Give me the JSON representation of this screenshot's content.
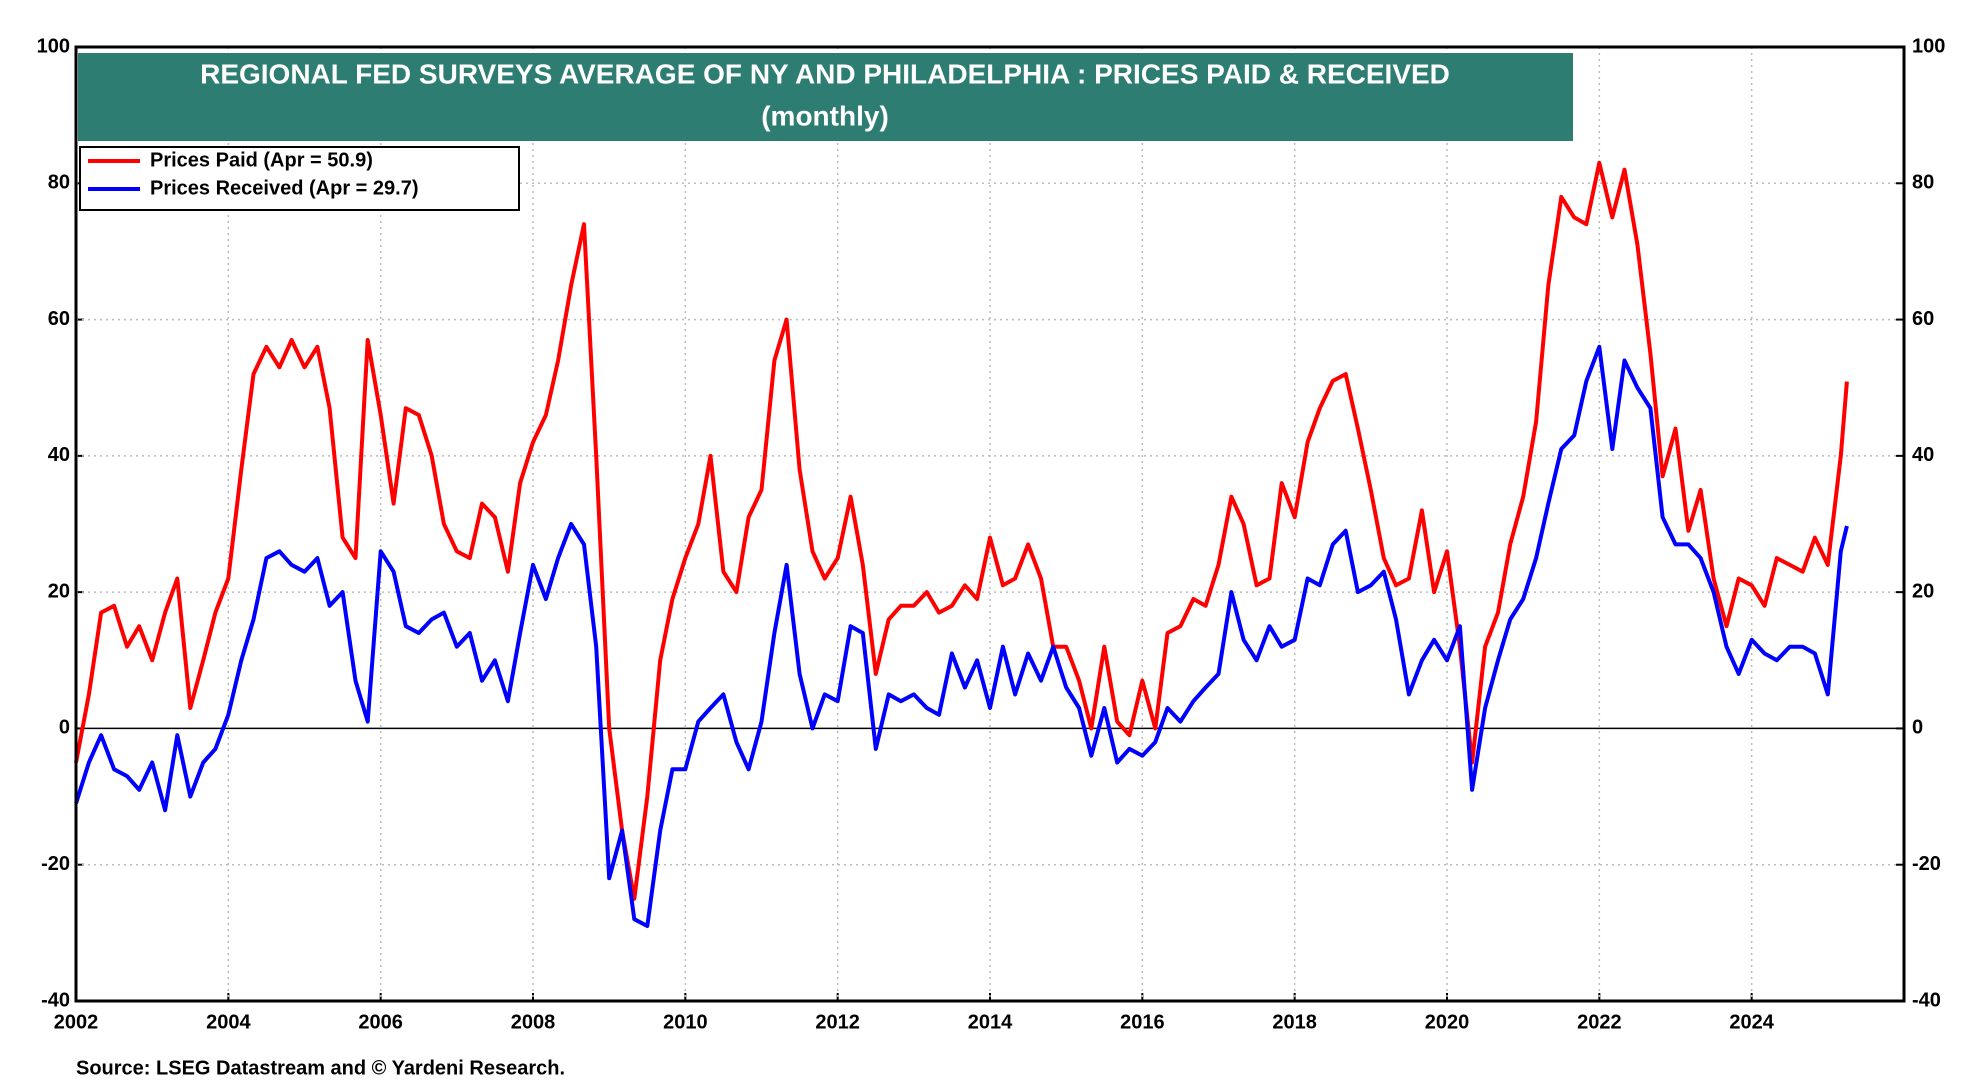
{
  "chart_data": {
    "type": "line",
    "title": "REGIONAL FED SURVEYS AVERAGE OF NY AND PHILADELPHIA : PRICES PAID & RECEIVED",
    "subtitle": "(monthly)",
    "source": "Source: LSEG Datastream and © Yardeni Research.",
    "x": [
      2002,
      2002.17,
      2002.33,
      2002.5,
      2002.67,
      2002.83,
      2003,
      2003.17,
      2003.33,
      2003.5,
      2003.67,
      2003.83,
      2004,
      2004.17,
      2004.33,
      2004.5,
      2004.67,
      2004.83,
      2005,
      2005.17,
      2005.33,
      2005.5,
      2005.67,
      2005.83,
      2006,
      2006.17,
      2006.33,
      2006.5,
      2006.67,
      2006.83,
      2007,
      2007.17,
      2007.33,
      2007.5,
      2007.67,
      2007.83,
      2008,
      2008.17,
      2008.33,
      2008.5,
      2008.67,
      2008.83,
      2009,
      2009.17,
      2009.33,
      2009.5,
      2009.67,
      2009.83,
      2010,
      2010.17,
      2010.33,
      2010.5,
      2010.67,
      2010.83,
      2011,
      2011.17,
      2011.33,
      2011.5,
      2011.67,
      2011.83,
      2012,
      2012.17,
      2012.33,
      2012.5,
      2012.67,
      2012.83,
      2013,
      2013.17,
      2013.33,
      2013.5,
      2013.67,
      2013.83,
      2014,
      2014.17,
      2014.33,
      2014.5,
      2014.67,
      2014.83,
      2015,
      2015.17,
      2015.33,
      2015.5,
      2015.67,
      2015.83,
      2016,
      2016.17,
      2016.33,
      2016.5,
      2016.67,
      2016.83,
      2017,
      2017.17,
      2017.33,
      2017.5,
      2017.67,
      2017.83,
      2018,
      2018.17,
      2018.33,
      2018.5,
      2018.67,
      2018.83,
      2019,
      2019.17,
      2019.33,
      2019.5,
      2019.67,
      2019.83,
      2020,
      2020.17,
      2020.33,
      2020.5,
      2020.67,
      2020.83,
      2021,
      2021.17,
      2021.33,
      2021.5,
      2021.67,
      2021.83,
      2022,
      2022.17,
      2022.33,
      2022.5,
      2022.67,
      2022.83,
      2023,
      2023.17,
      2023.33,
      2023.5,
      2023.67,
      2023.83,
      2024,
      2024.17,
      2024.33,
      2024.5,
      2024.67,
      2024.83,
      2025,
      2025.17,
      2025.25
    ],
    "series": [
      {
        "name": "Prices Paid (Apr = 50.9)",
        "color": "#ff0000",
        "values": [
          -5,
          5,
          17,
          18,
          12,
          15,
          10,
          17,
          22,
          3,
          10,
          17,
          22,
          38,
          52,
          56,
          53,
          57,
          53,
          56,
          47,
          28,
          25,
          57,
          46,
          33,
          47,
          46,
          40,
          30,
          26,
          25,
          33,
          31,
          23,
          36,
          42,
          46,
          54,
          65,
          74,
          40,
          0,
          -15,
          -25,
          -10,
          10,
          19,
          25,
          30,
          40,
          23,
          20,
          31,
          35,
          54,
          60,
          38,
          26,
          22,
          25,
          34,
          24,
          8,
          16,
          18,
          18,
          20,
          17,
          18,
          21,
          19,
          28,
          21,
          22,
          27,
          22,
          12,
          12,
          7,
          0,
          12,
          1,
          -1,
          7,
          0,
          14,
          15,
          19,
          18,
          24,
          34,
          30,
          21,
          22,
          36,
          31,
          42,
          47,
          51,
          52,
          44,
          35,
          25,
          21,
          22,
          32,
          20,
          26,
          12,
          -5,
          12,
          17,
          27,
          34,
          45,
          65,
          78,
          75,
          74,
          83,
          75,
          82,
          71,
          55,
          37,
          44,
          29,
          35,
          22,
          15,
          22,
          21,
          18,
          25,
          24,
          23,
          28,
          24,
          40,
          50.9
        ]
      },
      {
        "name": "Prices Received (Apr = 29.7)",
        "color": "#0000ff",
        "values": [
          -11,
          -5,
          -1,
          -6,
          -7,
          -9,
          -5,
          -12,
          -1,
          -10,
          -5,
          -3,
          2,
          10,
          16,
          25,
          26,
          24,
          23,
          25,
          18,
          20,
          7,
          1,
          26,
          23,
          15,
          14,
          16,
          17,
          12,
          14,
          7,
          10,
          4,
          14,
          24,
          19,
          25,
          30,
          27,
          12,
          -22,
          -15,
          -28,
          -29,
          -15,
          -6,
          -6,
          1,
          3,
          5,
          -2,
          -6,
          1,
          14,
          24,
          8,
          0,
          5,
          4,
          15,
          14,
          -3,
          5,
          4,
          5,
          3,
          2,
          11,
          6,
          10,
          3,
          12,
          5,
          11,
          7,
          12,
          6,
          3,
          -4,
          3,
          -5,
          -3,
          -4,
          -2,
          3,
          1,
          4,
          6,
          8,
          20,
          13,
          10,
          15,
          12,
          13,
          22,
          21,
          27,
          29,
          20,
          21,
          23,
          16,
          5,
          10,
          13,
          10,
          15,
          -9,
          3,
          10,
          16,
          19,
          25,
          33,
          41,
          43,
          51,
          56,
          41,
          54,
          50,
          47,
          31,
          27,
          27,
          25,
          20,
          12,
          8,
          13,
          11,
          10,
          12,
          12,
          11,
          5,
          26,
          29.7
        ]
      }
    ],
    "xlim": [
      2002,
      2026
    ],
    "xticks": [
      2002,
      2004,
      2006,
      2008,
      2010,
      2012,
      2014,
      2016,
      2018,
      2020,
      2022,
      2024
    ],
    "ylim": [
      -40,
      100
    ],
    "yticks": [
      -40,
      -20,
      0,
      20,
      40,
      60,
      80,
      100
    ],
    "y2lim": [
      -40,
      100
    ],
    "y2ticks": [
      -40,
      -20,
      0,
      20,
      40,
      60,
      80,
      100
    ],
    "grid": true,
    "legend": "upper left"
  }
}
